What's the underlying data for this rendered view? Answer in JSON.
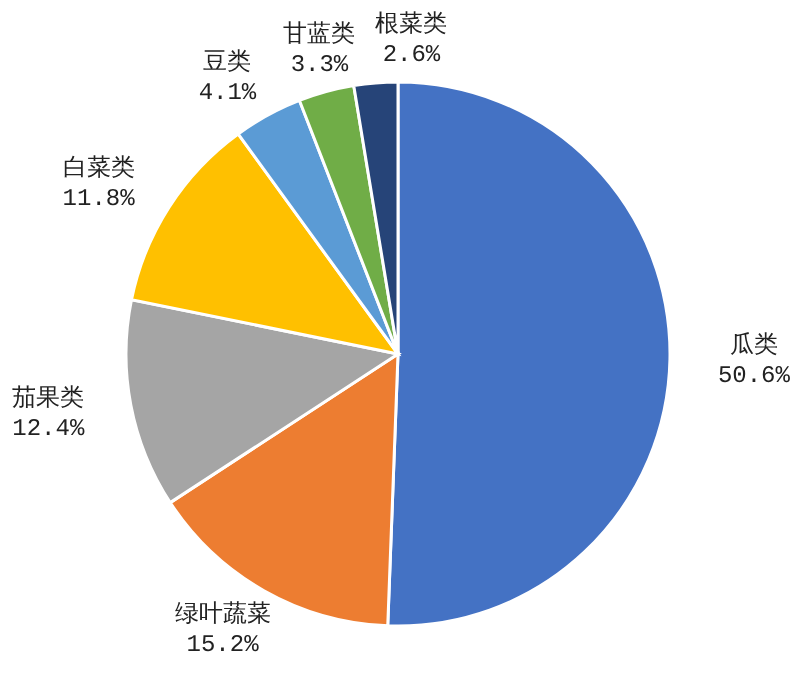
{
  "chart_data": {
    "type": "pie",
    "categories": [
      "瓜类",
      "绿叶蔬菜",
      "茄果类",
      "白菜类",
      "豆类",
      "甘蓝类",
      "根菜类"
    ],
    "values": [
      50.6,
      15.2,
      12.4,
      11.8,
      4.1,
      3.3,
      2.6
    ],
    "value_labels": [
      "50.6%",
      "15.2%",
      "12.4%",
      "11.8%",
      "4.1%",
      "3.3%",
      "2.6%"
    ],
    "colors": [
      "#4472c4",
      "#ed7d31",
      "#a5a5a5",
      "#ffc000",
      "#5b9bd5",
      "#70ad47",
      "#264478"
    ],
    "legend": false
  }
}
